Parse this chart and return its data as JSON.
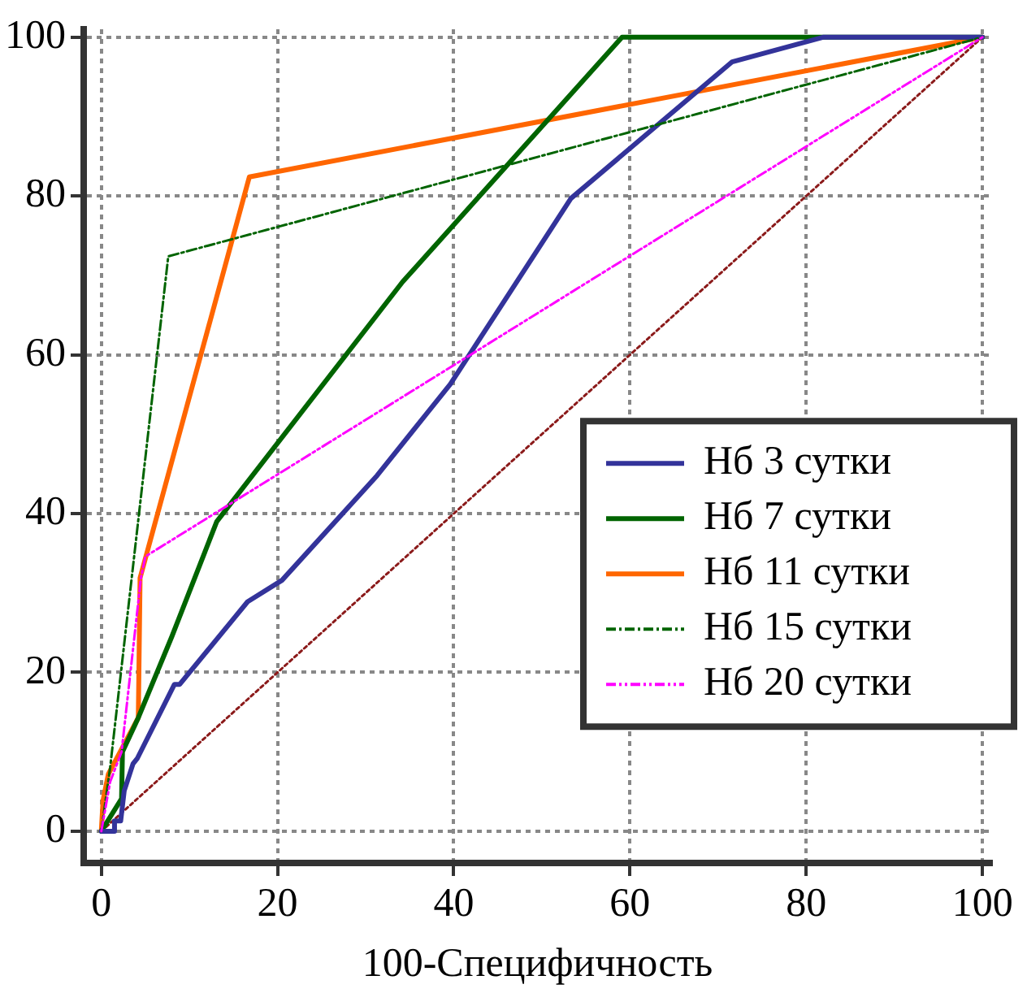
{
  "chart_data": {
    "type": "line",
    "xlabel": "100-Специфичность",
    "xlim": [
      -2,
      101
    ],
    "ylim": [
      -4,
      101
    ],
    "xticks": [
      0,
      20,
      40,
      60,
      80,
      100
    ],
    "yticks": [
      0,
      20,
      40,
      60,
      80,
      100
    ],
    "grid": true,
    "legend": "right",
    "marker": "none",
    "series": [
      {
        "name": "Нб 3 сутки",
        "color": "#33339a",
        "line_style": "solid",
        "x": [
          0,
          1.5,
          1.5,
          2.2,
          2.6,
          3.6,
          4.1,
          8.3,
          8.9,
          16.6,
          20.5,
          31.3,
          39.6,
          53.3,
          71.6,
          81.9,
          100
        ],
        "values": [
          0,
          0,
          1.3,
          1.3,
          5.1,
          8.5,
          9.2,
          18.5,
          18.5,
          28.9,
          31.6,
          44.8,
          56.3,
          79.7,
          96.9,
          100,
          100
        ]
      },
      {
        "name": "Нб 7 сутки",
        "color": "#006400",
        "line_style": "solid",
        "x": [
          0,
          2.3,
          2.4,
          4.2,
          8,
          13.1,
          34.2,
          59.1,
          100
        ],
        "values": [
          0,
          4.1,
          10,
          14.3,
          24.5,
          39,
          69.2,
          100,
          100
        ]
      },
      {
        "name": "Нб 11 сутки",
        "color": "#ff6600",
        "line_style": "solid",
        "x": [
          0,
          0.2,
          0.8,
          4.2,
          4.4,
          16.8,
          100
        ],
        "values": [
          0,
          3.9,
          7.2,
          14.3,
          31.9,
          82.4,
          100
        ]
      },
      {
        "name": "Нб 15 сутки",
        "color": "#006400",
        "line_style": "dashed",
        "x": [
          0,
          1,
          7.6,
          100
        ],
        "values": [
          0,
          8,
          72.4,
          100
        ]
      },
      {
        "name": "Нб 20 сутки",
        "color": "#ff00ff",
        "line_style": "dashed",
        "x": [
          0,
          1,
          2.3,
          4.5,
          5,
          100
        ],
        "values": [
          0,
          6.2,
          10,
          31.9,
          34.6,
          100
        ]
      },
      {
        "color": "#8b1a1a",
        "line_style": "dotted",
        "x": [
          0,
          100
        ],
        "values": [
          0,
          100
        ]
      }
    ]
  }
}
